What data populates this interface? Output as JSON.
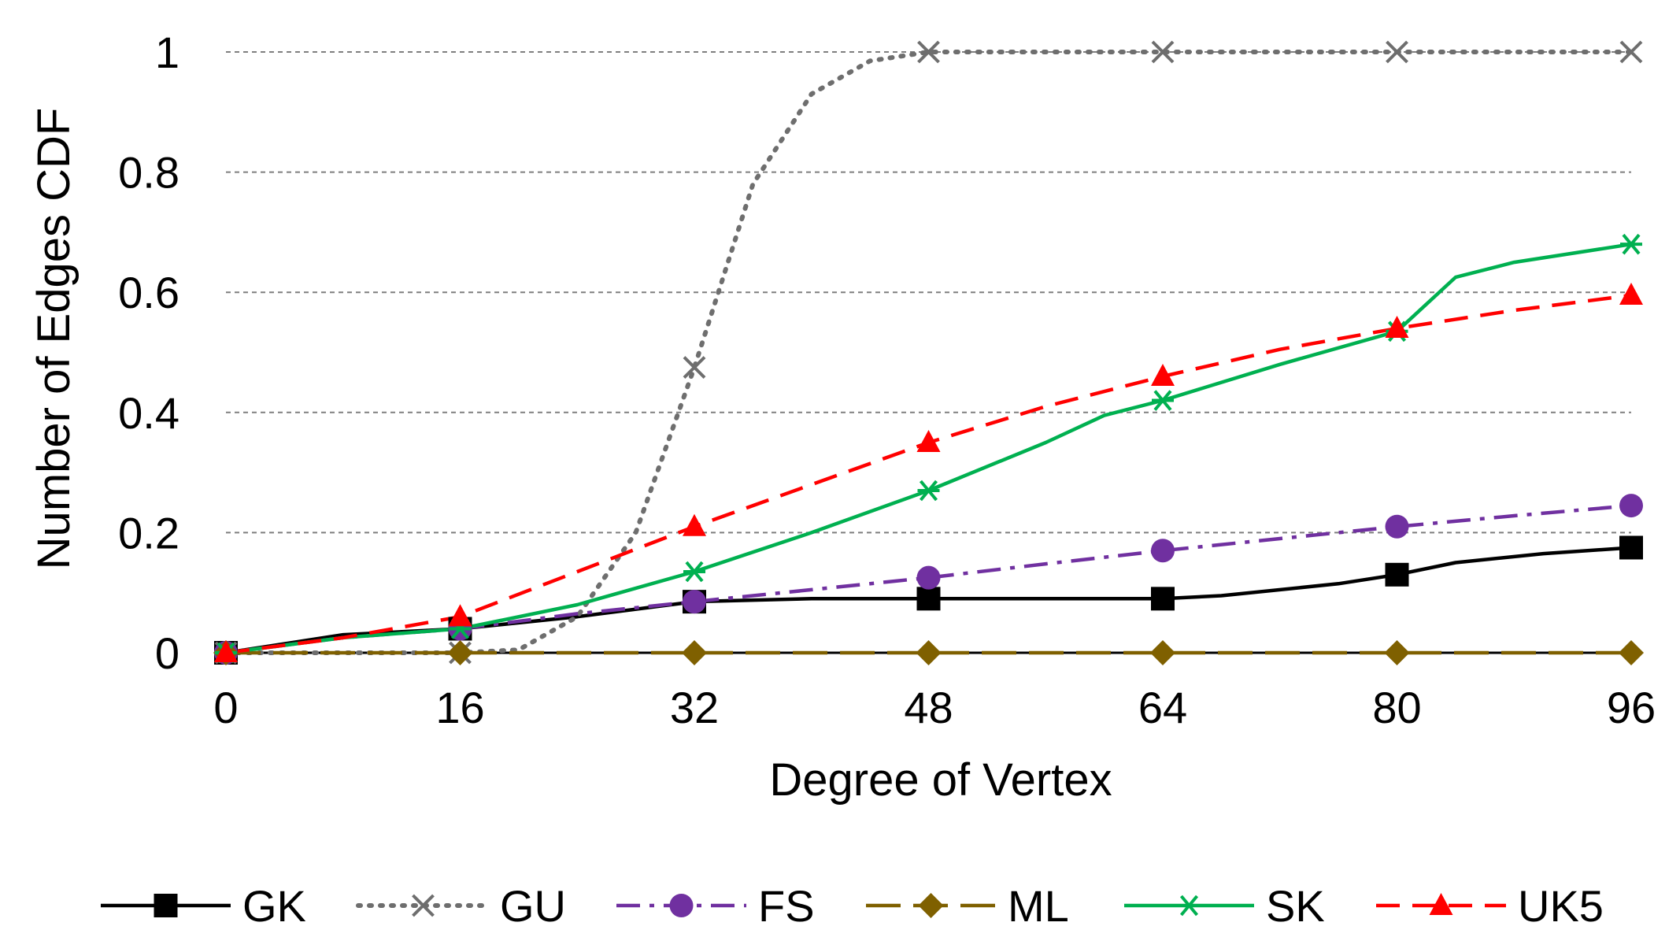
{
  "chart_data": {
    "type": "line",
    "title": "",
    "xlabel": "Degree of Vertex",
    "ylabel": "Number of Edges CDF",
    "xlim": [
      0,
      96
    ],
    "ylim": [
      0,
      1
    ],
    "x_ticks": [
      0,
      16,
      32,
      48,
      64,
      80,
      96
    ],
    "x_tick_labels": [
      "0",
      "16",
      "32",
      "48",
      "64",
      "80",
      "96"
    ],
    "y_ticks": [
      0,
      0.2,
      0.4,
      0.6,
      0.8,
      1
    ],
    "y_tick_labels": [
      "0",
      "0.2",
      "0.4",
      "0.6",
      "0.8",
      "1"
    ],
    "grid": "horizontal dashed",
    "legend_position": "bottom",
    "marker_x": [
      0,
      16,
      32,
      48,
      64,
      80,
      96
    ],
    "series": [
      {
        "name": "GK",
        "color": "#000000",
        "dash": "solid",
        "marker": "square",
        "marker_values": [
          0,
          0.04,
          0.085,
          0.09,
          0.09,
          0.13,
          0.175
        ],
        "curve": [
          [
            0,
            0
          ],
          [
            8,
            0.03
          ],
          [
            16,
            0.04
          ],
          [
            24,
            0.06
          ],
          [
            32,
            0.085
          ],
          [
            40,
            0.09
          ],
          [
            48,
            0.09
          ],
          [
            56,
            0.09
          ],
          [
            64,
            0.09
          ],
          [
            68,
            0.095
          ],
          [
            76,
            0.115
          ],
          [
            80,
            0.13
          ],
          [
            84,
            0.15
          ],
          [
            90,
            0.165
          ],
          [
            96,
            0.175
          ]
        ]
      },
      {
        "name": "GU",
        "color": "#6e6e6e",
        "dash": "dotted",
        "marker": "x",
        "marker_values": [
          0,
          0,
          0.475,
          1,
          1,
          1,
          1
        ],
        "curve": [
          [
            0,
            0
          ],
          [
            16,
            0
          ],
          [
            20,
            0.005
          ],
          [
            24,
            0.06
          ],
          [
            28,
            0.2
          ],
          [
            32,
            0.475
          ],
          [
            36,
            0.78
          ],
          [
            40,
            0.93
          ],
          [
            44,
            0.985
          ],
          [
            48,
            1
          ],
          [
            64,
            1
          ],
          [
            80,
            1
          ],
          [
            96,
            1
          ]
        ]
      },
      {
        "name": "FS",
        "color": "#7030a0",
        "dash": "dashdot",
        "marker": "circle",
        "marker_values": [
          0,
          0.04,
          0.085,
          0.125,
          0.17,
          0.21,
          0.245
        ],
        "curve": [
          [
            0,
            0
          ],
          [
            8,
            0.025
          ],
          [
            16,
            0.04
          ],
          [
            24,
            0.065
          ],
          [
            32,
            0.085
          ],
          [
            40,
            0.105
          ],
          [
            48,
            0.125
          ],
          [
            56,
            0.148
          ],
          [
            64,
            0.17
          ],
          [
            72,
            0.19
          ],
          [
            80,
            0.21
          ],
          [
            88,
            0.228
          ],
          [
            96,
            0.245
          ]
        ]
      },
      {
        "name": "ML",
        "color": "#7f6000",
        "dash": "longdash",
        "marker": "diamond",
        "marker_values": [
          0,
          0,
          0,
          0,
          0,
          0,
          0
        ],
        "curve": [
          [
            0,
            0
          ],
          [
            96,
            0
          ]
        ]
      },
      {
        "name": "SK",
        "color": "#00b050",
        "dash": "solid",
        "marker": "asterisk",
        "marker_values": [
          0,
          0.04,
          0.135,
          0.27,
          0.42,
          0.535,
          0.68
        ],
        "curve": [
          [
            0,
            0
          ],
          [
            8,
            0.025
          ],
          [
            16,
            0.04
          ],
          [
            24,
            0.08
          ],
          [
            32,
            0.135
          ],
          [
            40,
            0.2
          ],
          [
            48,
            0.27
          ],
          [
            56,
            0.35
          ],
          [
            60,
            0.395
          ],
          [
            64,
            0.42
          ],
          [
            72,
            0.48
          ],
          [
            80,
            0.535
          ],
          [
            84,
            0.625
          ],
          [
            88,
            0.65
          ],
          [
            96,
            0.68
          ]
        ]
      },
      {
        "name": "UK5",
        "color": "#ff0000",
        "dash": "dashed",
        "marker": "triangle",
        "marker_values": [
          0,
          0.06,
          0.21,
          0.35,
          0.46,
          0.54,
          0.595
        ],
        "curve": [
          [
            0,
            0
          ],
          [
            8,
            0.025
          ],
          [
            16,
            0.06
          ],
          [
            24,
            0.135
          ],
          [
            32,
            0.21
          ],
          [
            40,
            0.28
          ],
          [
            48,
            0.35
          ],
          [
            56,
            0.41
          ],
          [
            64,
            0.46
          ],
          [
            72,
            0.505
          ],
          [
            80,
            0.54
          ],
          [
            88,
            0.57
          ],
          [
            96,
            0.595
          ]
        ]
      }
    ]
  }
}
